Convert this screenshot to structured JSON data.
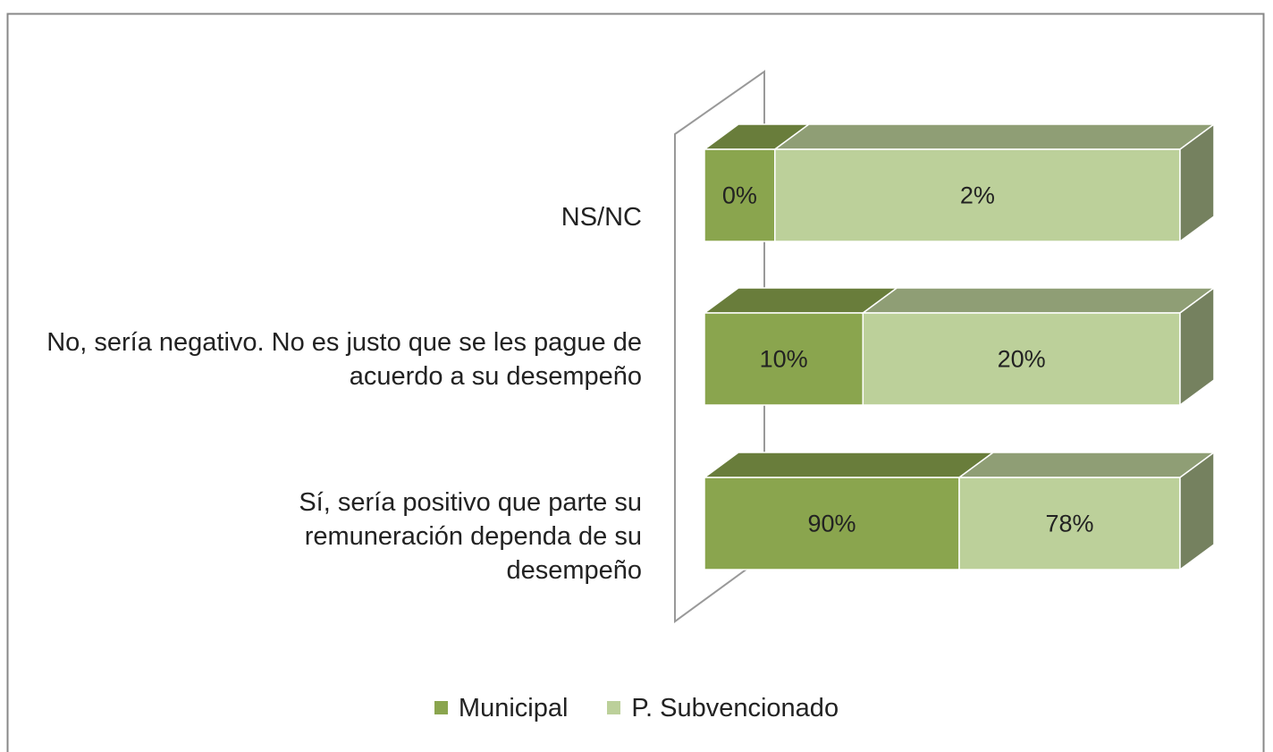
{
  "chart_data": {
    "type": "bar",
    "orientation": "horizontal",
    "stacking": "percent",
    "categories": [
      "NS/NC",
      "No, sería negativo. No es justo que se les pague de acuerdo a su desempeño",
      "Sí, sería positivo que parte su remuneración dependa de su desempeño"
    ],
    "series": [
      {
        "name": "Municipal",
        "color": "#8aa54e",
        "values": [
          0.4,
          10,
          90
        ],
        "value_labels": [
          "0%",
          "10%",
          "90%"
        ]
      },
      {
        "name": "P. Subvencionado",
        "color": "#bcd09a",
        "values": [
          2.3,
          20,
          78
        ],
        "value_labels": [
          "2%",
          "20%",
          "78%"
        ]
      }
    ],
    "legend": "bottom"
  }
}
